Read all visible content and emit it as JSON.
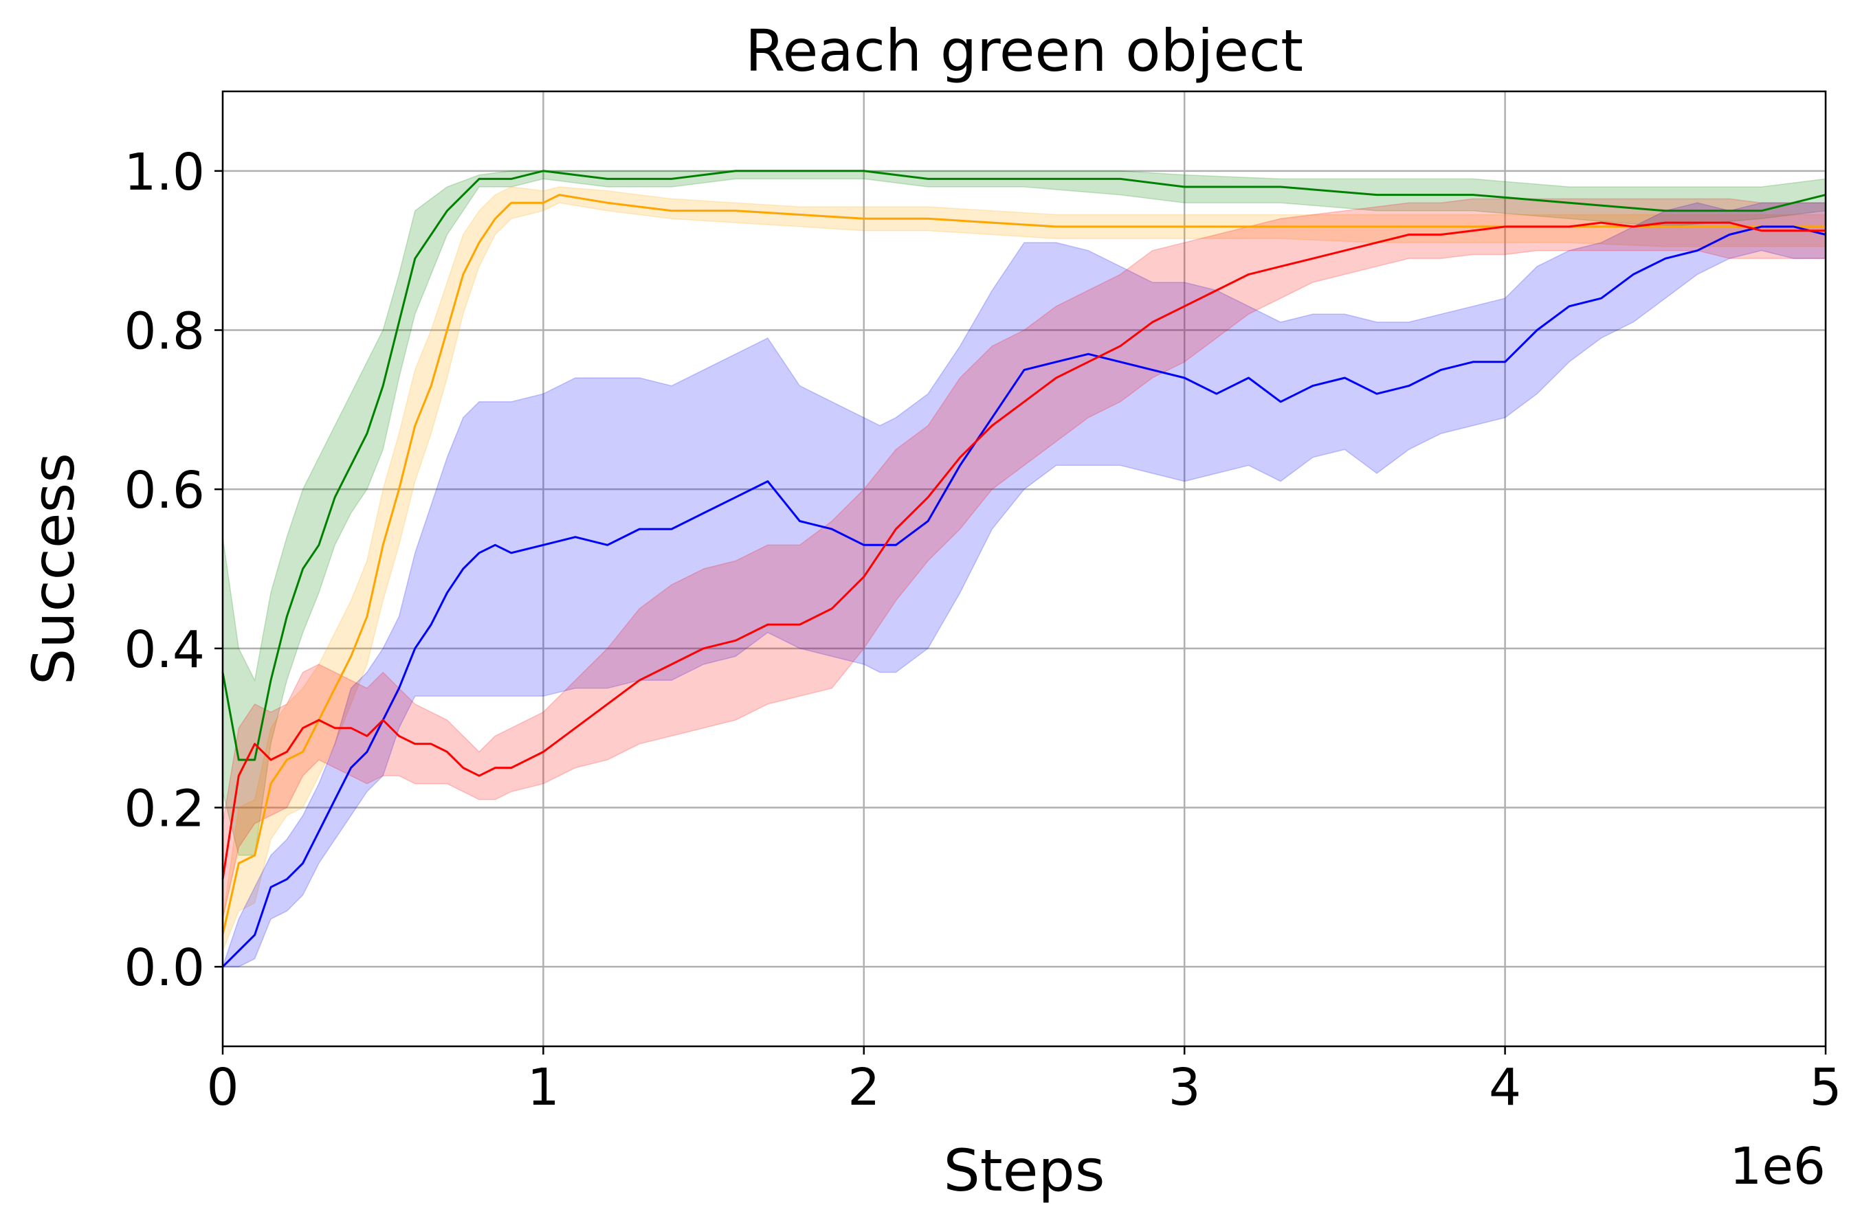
{
  "chart_data": {
    "type": "line",
    "title": "Reach green object",
    "xlabel": "Steps",
    "ylabel": "Success",
    "x_offset_label": "1e6",
    "xlim": [
      0,
      5
    ],
    "ylim": [
      -0.1,
      1.1
    ],
    "xticks": [
      0,
      1,
      2,
      3,
      4,
      5
    ],
    "xtick_labels": [
      "0",
      "1",
      "2",
      "3",
      "4",
      "5"
    ],
    "yticks": [
      0.0,
      0.2,
      0.4,
      0.6,
      0.8,
      1.0
    ],
    "ytick_labels": [
      "0.0",
      "0.2",
      "0.4",
      "0.6",
      "0.8",
      "1.0"
    ],
    "grid": true,
    "legend": "none",
    "series": [
      {
        "color": "#008000",
        "x": [
          0,
          0.05,
          0.1,
          0.15,
          0.2,
          0.25,
          0.3,
          0.35,
          0.4,
          0.45,
          0.5,
          0.55,
          0.6,
          0.7,
          0.8,
          0.9,
          1.0,
          1.2,
          1.4,
          1.6,
          1.8,
          2.0,
          2.2,
          2.5,
          2.8,
          3.0,
          3.3,
          3.6,
          3.9,
          4.2,
          4.5,
          4.8,
          5.0
        ],
        "y": [
          0.37,
          0.26,
          0.26,
          0.36,
          0.44,
          0.5,
          0.53,
          0.59,
          0.63,
          0.67,
          0.73,
          0.81,
          0.89,
          0.95,
          0.99,
          0.99,
          1.0,
          0.99,
          0.99,
          1.0,
          1.0,
          1.0,
          0.99,
          0.99,
          0.99,
          0.98,
          0.98,
          0.97,
          0.97,
          0.96,
          0.95,
          0.95,
          0.97
        ],
        "lower": [
          0.22,
          0.14,
          0.14,
          0.28,
          0.36,
          0.42,
          0.47,
          0.53,
          0.57,
          0.6,
          0.65,
          0.74,
          0.82,
          0.92,
          0.98,
          0.98,
          0.99,
          0.98,
          0.98,
          0.99,
          0.99,
          0.99,
          0.98,
          0.98,
          0.97,
          0.96,
          0.96,
          0.95,
          0.95,
          0.94,
          0.93,
          0.94,
          0.95
        ],
        "upper": [
          0.54,
          0.4,
          0.36,
          0.47,
          0.54,
          0.6,
          0.64,
          0.68,
          0.72,
          0.76,
          0.8,
          0.87,
          0.95,
          0.98,
          0.995,
          1.0,
          1.0,
          1.0,
          1.0,
          1.0,
          1.0,
          1.0,
          1.0,
          1.0,
          1.0,
          0.995,
          0.99,
          0.99,
          0.99,
          0.98,
          0.98,
          0.98,
          0.99
        ]
      },
      {
        "color": "#ffa500",
        "x": [
          0,
          0.05,
          0.1,
          0.15,
          0.2,
          0.25,
          0.3,
          0.35,
          0.4,
          0.45,
          0.5,
          0.55,
          0.6,
          0.65,
          0.7,
          0.75,
          0.8,
          0.85,
          0.9,
          1.0,
          1.05,
          1.2,
          1.4,
          1.6,
          1.8,
          2.0,
          2.2,
          2.4,
          2.6,
          2.8,
          3.0,
          3.3,
          3.6,
          3.9,
          4.2,
          4.5,
          4.8,
          5.0
        ],
        "y": [
          0.04,
          0.13,
          0.14,
          0.23,
          0.26,
          0.27,
          0.31,
          0.35,
          0.39,
          0.44,
          0.53,
          0.6,
          0.68,
          0.73,
          0.8,
          0.87,
          0.91,
          0.94,
          0.96,
          0.96,
          0.97,
          0.96,
          0.95,
          0.95,
          0.945,
          0.94,
          0.94,
          0.935,
          0.93,
          0.93,
          0.93,
          0.93,
          0.93,
          0.93,
          0.93,
          0.93,
          0.93,
          0.93
        ],
        "lower": [
          0.02,
          0.07,
          0.08,
          0.16,
          0.19,
          0.2,
          0.24,
          0.28,
          0.33,
          0.38,
          0.46,
          0.53,
          0.61,
          0.67,
          0.74,
          0.82,
          0.88,
          0.92,
          0.94,
          0.95,
          0.96,
          0.95,
          0.94,
          0.935,
          0.93,
          0.925,
          0.925,
          0.92,
          0.915,
          0.915,
          0.915,
          0.915,
          0.91,
          0.91,
          0.91,
          0.905,
          0.905,
          0.905
        ],
        "upper": [
          0.06,
          0.2,
          0.21,
          0.3,
          0.33,
          0.35,
          0.38,
          0.42,
          0.46,
          0.51,
          0.6,
          0.67,
          0.75,
          0.8,
          0.86,
          0.92,
          0.95,
          0.97,
          0.98,
          0.975,
          0.98,
          0.975,
          0.965,
          0.96,
          0.955,
          0.955,
          0.955,
          0.95,
          0.945,
          0.945,
          0.945,
          0.945,
          0.945,
          0.945,
          0.945,
          0.945,
          0.945,
          0.945
        ]
      },
      {
        "color": "#0000ff",
        "x": [
          0,
          0.05,
          0.1,
          0.15,
          0.2,
          0.25,
          0.3,
          0.35,
          0.4,
          0.45,
          0.5,
          0.55,
          0.6,
          0.65,
          0.7,
          0.75,
          0.8,
          0.85,
          0.9,
          1.0,
          1.1,
          1.2,
          1.3,
          1.4,
          1.5,
          1.6,
          1.7,
          1.8,
          1.9,
          2.0,
          2.05,
          2.1,
          2.2,
          2.3,
          2.4,
          2.5,
          2.6,
          2.7,
          2.8,
          2.9,
          3.0,
          3.1,
          3.2,
          3.3,
          3.4,
          3.5,
          3.6,
          3.7,
          3.8,
          3.9,
          4.0,
          4.1,
          4.2,
          4.3,
          4.4,
          4.5,
          4.6,
          4.7,
          4.8,
          4.9,
          5.0
        ],
        "y": [
          0.0,
          0.02,
          0.04,
          0.1,
          0.11,
          0.13,
          0.17,
          0.21,
          0.25,
          0.27,
          0.31,
          0.35,
          0.4,
          0.43,
          0.47,
          0.5,
          0.52,
          0.53,
          0.52,
          0.53,
          0.54,
          0.53,
          0.55,
          0.55,
          0.57,
          0.59,
          0.61,
          0.56,
          0.55,
          0.53,
          0.53,
          0.53,
          0.56,
          0.63,
          0.69,
          0.75,
          0.76,
          0.77,
          0.76,
          0.75,
          0.74,
          0.72,
          0.74,
          0.71,
          0.73,
          0.74,
          0.72,
          0.73,
          0.75,
          0.76,
          0.76,
          0.8,
          0.83,
          0.84,
          0.87,
          0.89,
          0.9,
          0.92,
          0.93,
          0.93,
          0.92
        ],
        "lower": [
          0.0,
          0.0,
          0.01,
          0.06,
          0.07,
          0.09,
          0.13,
          0.16,
          0.19,
          0.22,
          0.24,
          0.3,
          0.34,
          0.34,
          0.34,
          0.34,
          0.34,
          0.34,
          0.34,
          0.34,
          0.35,
          0.35,
          0.36,
          0.36,
          0.38,
          0.39,
          0.42,
          0.4,
          0.39,
          0.38,
          0.37,
          0.37,
          0.4,
          0.47,
          0.55,
          0.6,
          0.63,
          0.63,
          0.63,
          0.62,
          0.61,
          0.62,
          0.63,
          0.61,
          0.64,
          0.65,
          0.62,
          0.65,
          0.67,
          0.68,
          0.69,
          0.72,
          0.76,
          0.79,
          0.81,
          0.84,
          0.87,
          0.89,
          0.9,
          0.89,
          0.89
        ],
        "upper": [
          0.0,
          0.06,
          0.1,
          0.14,
          0.16,
          0.19,
          0.23,
          0.28,
          0.35,
          0.37,
          0.4,
          0.44,
          0.52,
          0.58,
          0.64,
          0.69,
          0.71,
          0.71,
          0.71,
          0.72,
          0.74,
          0.74,
          0.74,
          0.73,
          0.75,
          0.77,
          0.79,
          0.73,
          0.71,
          0.69,
          0.68,
          0.69,
          0.72,
          0.78,
          0.85,
          0.91,
          0.91,
          0.9,
          0.88,
          0.86,
          0.86,
          0.85,
          0.83,
          0.81,
          0.82,
          0.82,
          0.81,
          0.81,
          0.82,
          0.83,
          0.84,
          0.88,
          0.9,
          0.91,
          0.93,
          0.95,
          0.96,
          0.95,
          0.96,
          0.96,
          0.96
        ]
      },
      {
        "color": "#ff0000",
        "x": [
          0,
          0.05,
          0.1,
          0.15,
          0.2,
          0.25,
          0.3,
          0.35,
          0.4,
          0.45,
          0.5,
          0.55,
          0.6,
          0.65,
          0.7,
          0.75,
          0.8,
          0.85,
          0.9,
          1.0,
          1.1,
          1.2,
          1.3,
          1.4,
          1.5,
          1.6,
          1.7,
          1.8,
          1.9,
          2.0,
          2.1,
          2.2,
          2.3,
          2.4,
          2.5,
          2.6,
          2.7,
          2.8,
          2.9,
          3.0,
          3.1,
          3.2,
          3.3,
          3.4,
          3.5,
          3.6,
          3.7,
          3.8,
          3.9,
          4.0,
          4.1,
          4.2,
          4.3,
          4.4,
          4.5,
          4.6,
          4.7,
          4.8,
          4.9,
          5.0
        ],
        "y": [
          0.11,
          0.24,
          0.28,
          0.26,
          0.27,
          0.3,
          0.31,
          0.3,
          0.3,
          0.29,
          0.31,
          0.29,
          0.28,
          0.28,
          0.27,
          0.25,
          0.24,
          0.25,
          0.25,
          0.27,
          0.3,
          0.33,
          0.36,
          0.38,
          0.4,
          0.41,
          0.43,
          0.43,
          0.45,
          0.49,
          0.55,
          0.59,
          0.64,
          0.68,
          0.71,
          0.74,
          0.76,
          0.78,
          0.81,
          0.83,
          0.85,
          0.87,
          0.88,
          0.89,
          0.9,
          0.91,
          0.92,
          0.92,
          0.925,
          0.93,
          0.93,
          0.93,
          0.935,
          0.93,
          0.935,
          0.935,
          0.935,
          0.925,
          0.925,
          0.925
        ],
        "lower": [
          0.06,
          0.15,
          0.18,
          0.19,
          0.2,
          0.24,
          0.26,
          0.25,
          0.24,
          0.23,
          0.24,
          0.24,
          0.23,
          0.23,
          0.23,
          0.22,
          0.21,
          0.21,
          0.22,
          0.23,
          0.25,
          0.26,
          0.28,
          0.29,
          0.3,
          0.31,
          0.33,
          0.34,
          0.35,
          0.4,
          0.46,
          0.51,
          0.55,
          0.6,
          0.63,
          0.66,
          0.69,
          0.71,
          0.74,
          0.76,
          0.79,
          0.82,
          0.84,
          0.86,
          0.87,
          0.88,
          0.89,
          0.89,
          0.895,
          0.895,
          0.9,
          0.9,
          0.9,
          0.9,
          0.9,
          0.9,
          0.89,
          0.89,
          0.89,
          0.89
        ],
        "upper": [
          0.18,
          0.3,
          0.33,
          0.32,
          0.33,
          0.37,
          0.38,
          0.37,
          0.36,
          0.35,
          0.37,
          0.35,
          0.33,
          0.32,
          0.31,
          0.29,
          0.27,
          0.29,
          0.3,
          0.32,
          0.36,
          0.4,
          0.45,
          0.48,
          0.5,
          0.51,
          0.53,
          0.53,
          0.56,
          0.6,
          0.65,
          0.68,
          0.74,
          0.78,
          0.8,
          0.83,
          0.85,
          0.87,
          0.9,
          0.91,
          0.92,
          0.93,
          0.94,
          0.945,
          0.95,
          0.955,
          0.96,
          0.96,
          0.965,
          0.965,
          0.965,
          0.965,
          0.965,
          0.965,
          0.965,
          0.965,
          0.965,
          0.96,
          0.96,
          0.96
        ]
      }
    ]
  }
}
